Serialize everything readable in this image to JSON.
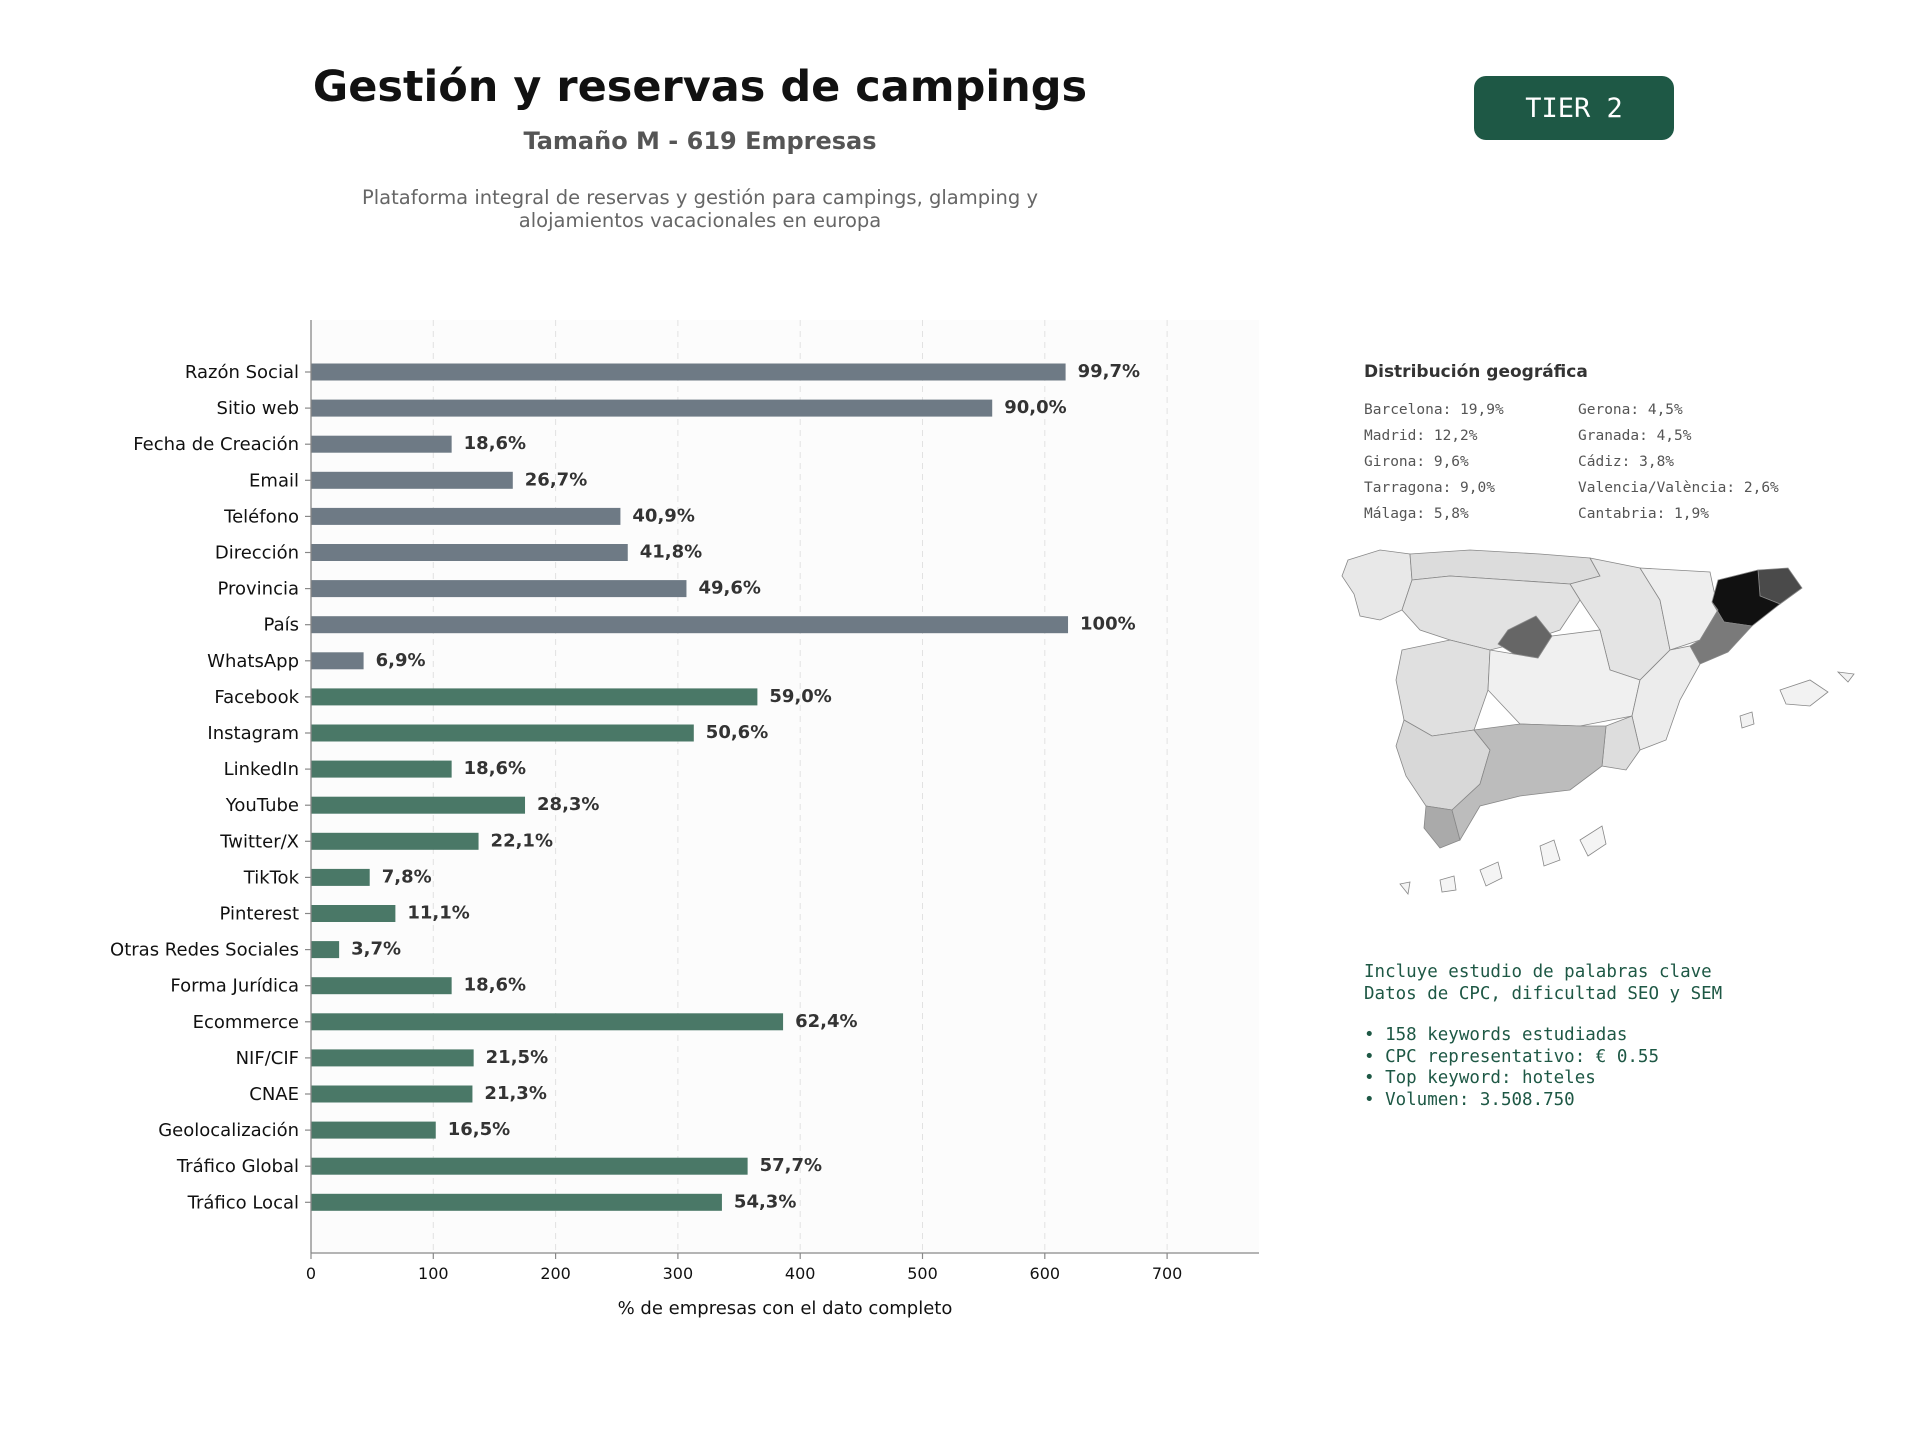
{
  "header": {
    "title": "Gestión y reservas de campings",
    "subtitle": "Tamaño M - 619 Empresas",
    "description": "Plataforma integral de reservas y gestión para campings, glamping y alojamientos vacacionales en europa",
    "badge": "TIER 2"
  },
  "colors": {
    "basic_bar": "#6e7a85",
    "digital_bar": "#4a7867",
    "accent": "#1e5845"
  },
  "chart_data": {
    "type": "bar",
    "orientation": "horizontal",
    "xlabel": "% de empresas con el dato completo",
    "xlim": [
      0,
      775
    ],
    "xticks": [
      0,
      100,
      200,
      300,
      400,
      500,
      600,
      700
    ],
    "grid": true,
    "categories": [
      "Razón Social",
      "Sitio web",
      "Fecha de Creación",
      "Email",
      "Teléfono",
      "Dirección",
      "Provincia",
      "País",
      "WhatsApp",
      "Facebook",
      "Instagram",
      "LinkedIn",
      "YouTube",
      "Twitter/X",
      "TikTok",
      "Pinterest",
      "Otras Redes Sociales",
      "Forma Jurídica",
      "Ecommerce",
      "NIF/CIF",
      "CNAE",
      "Geolocalización",
      "Tráfico Global",
      "Tráfico Local"
    ],
    "values": [
      617,
      557,
      115,
      165,
      253,
      259,
      307,
      619,
      43,
      365,
      313,
      115,
      175,
      137,
      48,
      69,
      23,
      115,
      386,
      133,
      132,
      102,
      357,
      336
    ],
    "labels": [
      "99,7%",
      "90,0%",
      "18,6%",
      "26,7%",
      "40,9%",
      "41,8%",
      "49,6%",
      "100%",
      "6,9%",
      "59,0%",
      "50,6%",
      "18,6%",
      "28,3%",
      "22,1%",
      "7,8%",
      "11,1%",
      "3,7%",
      "18,6%",
      "62,4%",
      "21,5%",
      "21,3%",
      "16,5%",
      "57,7%",
      "54,3%"
    ],
    "groups": [
      "basic",
      "basic",
      "basic",
      "basic",
      "basic",
      "basic",
      "basic",
      "basic",
      "basic",
      "digital",
      "digital",
      "digital",
      "digital",
      "digital",
      "digital",
      "digital",
      "digital",
      "digital",
      "digital",
      "digital",
      "digital",
      "digital",
      "digital",
      "digital"
    ]
  },
  "geo": {
    "title": "Distribución geográfica",
    "items": [
      "Barcelona: 19,9%",
      "Gerona: 4,5%",
      "Madrid: 12,2%",
      "Granada: 4,5%",
      "Girona: 9,6%",
      "Cádiz: 3,8%",
      "Tarragona: 9,0%",
      "Valencia/València: 2,6%",
      "Málaga: 5,8%",
      "Cantabria: 1,9%"
    ]
  },
  "keywords": {
    "line1": "Incluye estudio de palabras clave",
    "line2": "Datos de CPC, dificultad SEO y SEM",
    "bullets": [
      "• 158 keywords estudiadas",
      "• CPC representativo: € 0.55",
      "• Top keyword: hoteles",
      "• Volumen: 3.508.750"
    ]
  }
}
